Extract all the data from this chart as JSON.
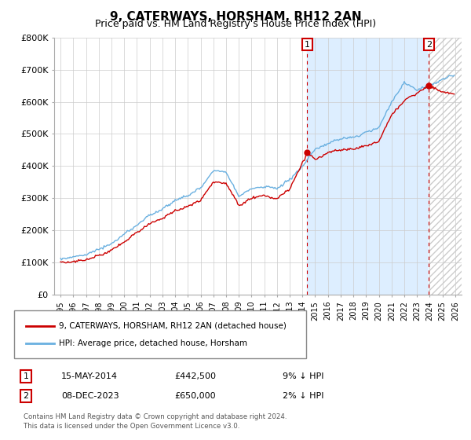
{
  "title": "9, CATERWAYS, HORSHAM, RH12 2AN",
  "subtitle": "Price paid vs. HM Land Registry's House Price Index (HPI)",
  "ylim": [
    0,
    800000
  ],
  "yticks": [
    0,
    100000,
    200000,
    300000,
    400000,
    500000,
    600000,
    700000,
    800000
  ],
  "ytick_labels": [
    "£0",
    "£100K",
    "£200K",
    "£300K",
    "£400K",
    "£500K",
    "£600K",
    "£700K",
    "£800K"
  ],
  "hpi_color": "#6ab0e0",
  "price_color": "#cc0000",
  "marker_color": "#cc0000",
  "shade_color": "#ddeeff",
  "sale1_date": "15-MAY-2014",
  "sale1_price": 442500,
  "sale1_label": "1",
  "sale1_pct": "9% ↓ HPI",
  "sale2_date": "08-DEC-2023",
  "sale2_price": 650000,
  "sale2_label": "2",
  "sale2_pct": "2% ↓ HPI",
  "legend_price_label": "9, CATERWAYS, HORSHAM, RH12 2AN (detached house)",
  "legend_hpi_label": "HPI: Average price, detached house, Horsham",
  "footer1": "Contains HM Land Registry data © Crown copyright and database right 2024.",
  "footer2": "This data is licensed under the Open Government Licence v3.0.",
  "plot_bg_color": "#ffffff",
  "grid_color": "#cccccc",
  "title_fontsize": 11,
  "subtitle_fontsize": 9,
  "tick_fontsize": 8
}
